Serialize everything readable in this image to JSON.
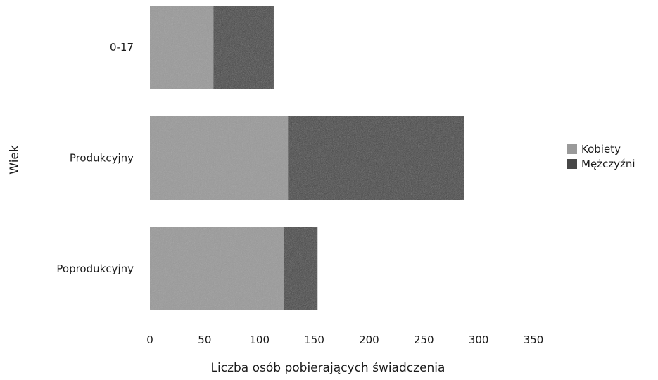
{
  "chart_data": {
    "type": "bar",
    "orientation": "horizontal",
    "stacked": true,
    "categories": [
      "0-17",
      "Produkcyjny",
      "Poprodukcyjny"
    ],
    "series": [
      {
        "name": "Kobiety",
        "values": [
          58,
          126,
          122
        ]
      },
      {
        "name": "Mężczyźni",
        "values": [
          55,
          161,
          31
        ]
      }
    ],
    "xlabel": "Liczba osób pobierających świadczenia",
    "ylabel": "Wiek",
    "xlim": [
      0,
      350
    ],
    "xticks": [
      "0",
      "50",
      "100",
      "150",
      "200",
      "250",
      "300",
      "350"
    ],
    "grid": false,
    "legend_position": "right",
    "colors": {
      "Kobiety": "#9a9a9a",
      "Mężczyźni": "#474747"
    }
  }
}
